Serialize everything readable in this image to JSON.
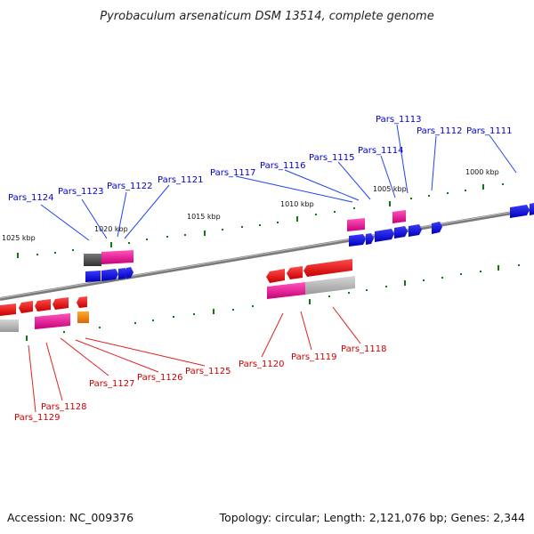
{
  "title": "Pyrobaculum arsenaticum DSM 13514, complete genome",
  "footer": {
    "accession": "Accession: NC_009376",
    "summary": "Topology: circular; Length: 2,121,076 bp; Genes: 2,344"
  },
  "colors": {
    "forward_label": "#0000cc",
    "reverse_label": "#cc0000",
    "forward_cds": "#0000ee",
    "reverse_cds": "#ee0000",
    "gene_pink": "#ee1199",
    "gene_grey": "#b0b0b0",
    "gene_dark": "#555555",
    "gene_orange": "#ff8800",
    "tick": "#117711",
    "backbone": "#888888"
  },
  "kbp_ticks": [
    "1025 kbp",
    "1020 kbp",
    "1015 kbp",
    "1010 kbp",
    "1005 kbp",
    "1000 kbp"
  ],
  "forward_genes": [
    "Pars_1124",
    "Pars_1123",
    "Pars_1122",
    "Pars_1121",
    "Pars_1117",
    "Pars_1116",
    "Pars_1115",
    "Pars_1114",
    "Pars_1113",
    "Pars_1112",
    "Pars_1111"
  ],
  "reverse_genes": [
    "Pars_1129",
    "Pars_1128",
    "Pars_1127",
    "Pars_1126",
    "Pars_1125",
    "Pars_1120",
    "Pars_1119",
    "Pars_1118"
  ]
}
